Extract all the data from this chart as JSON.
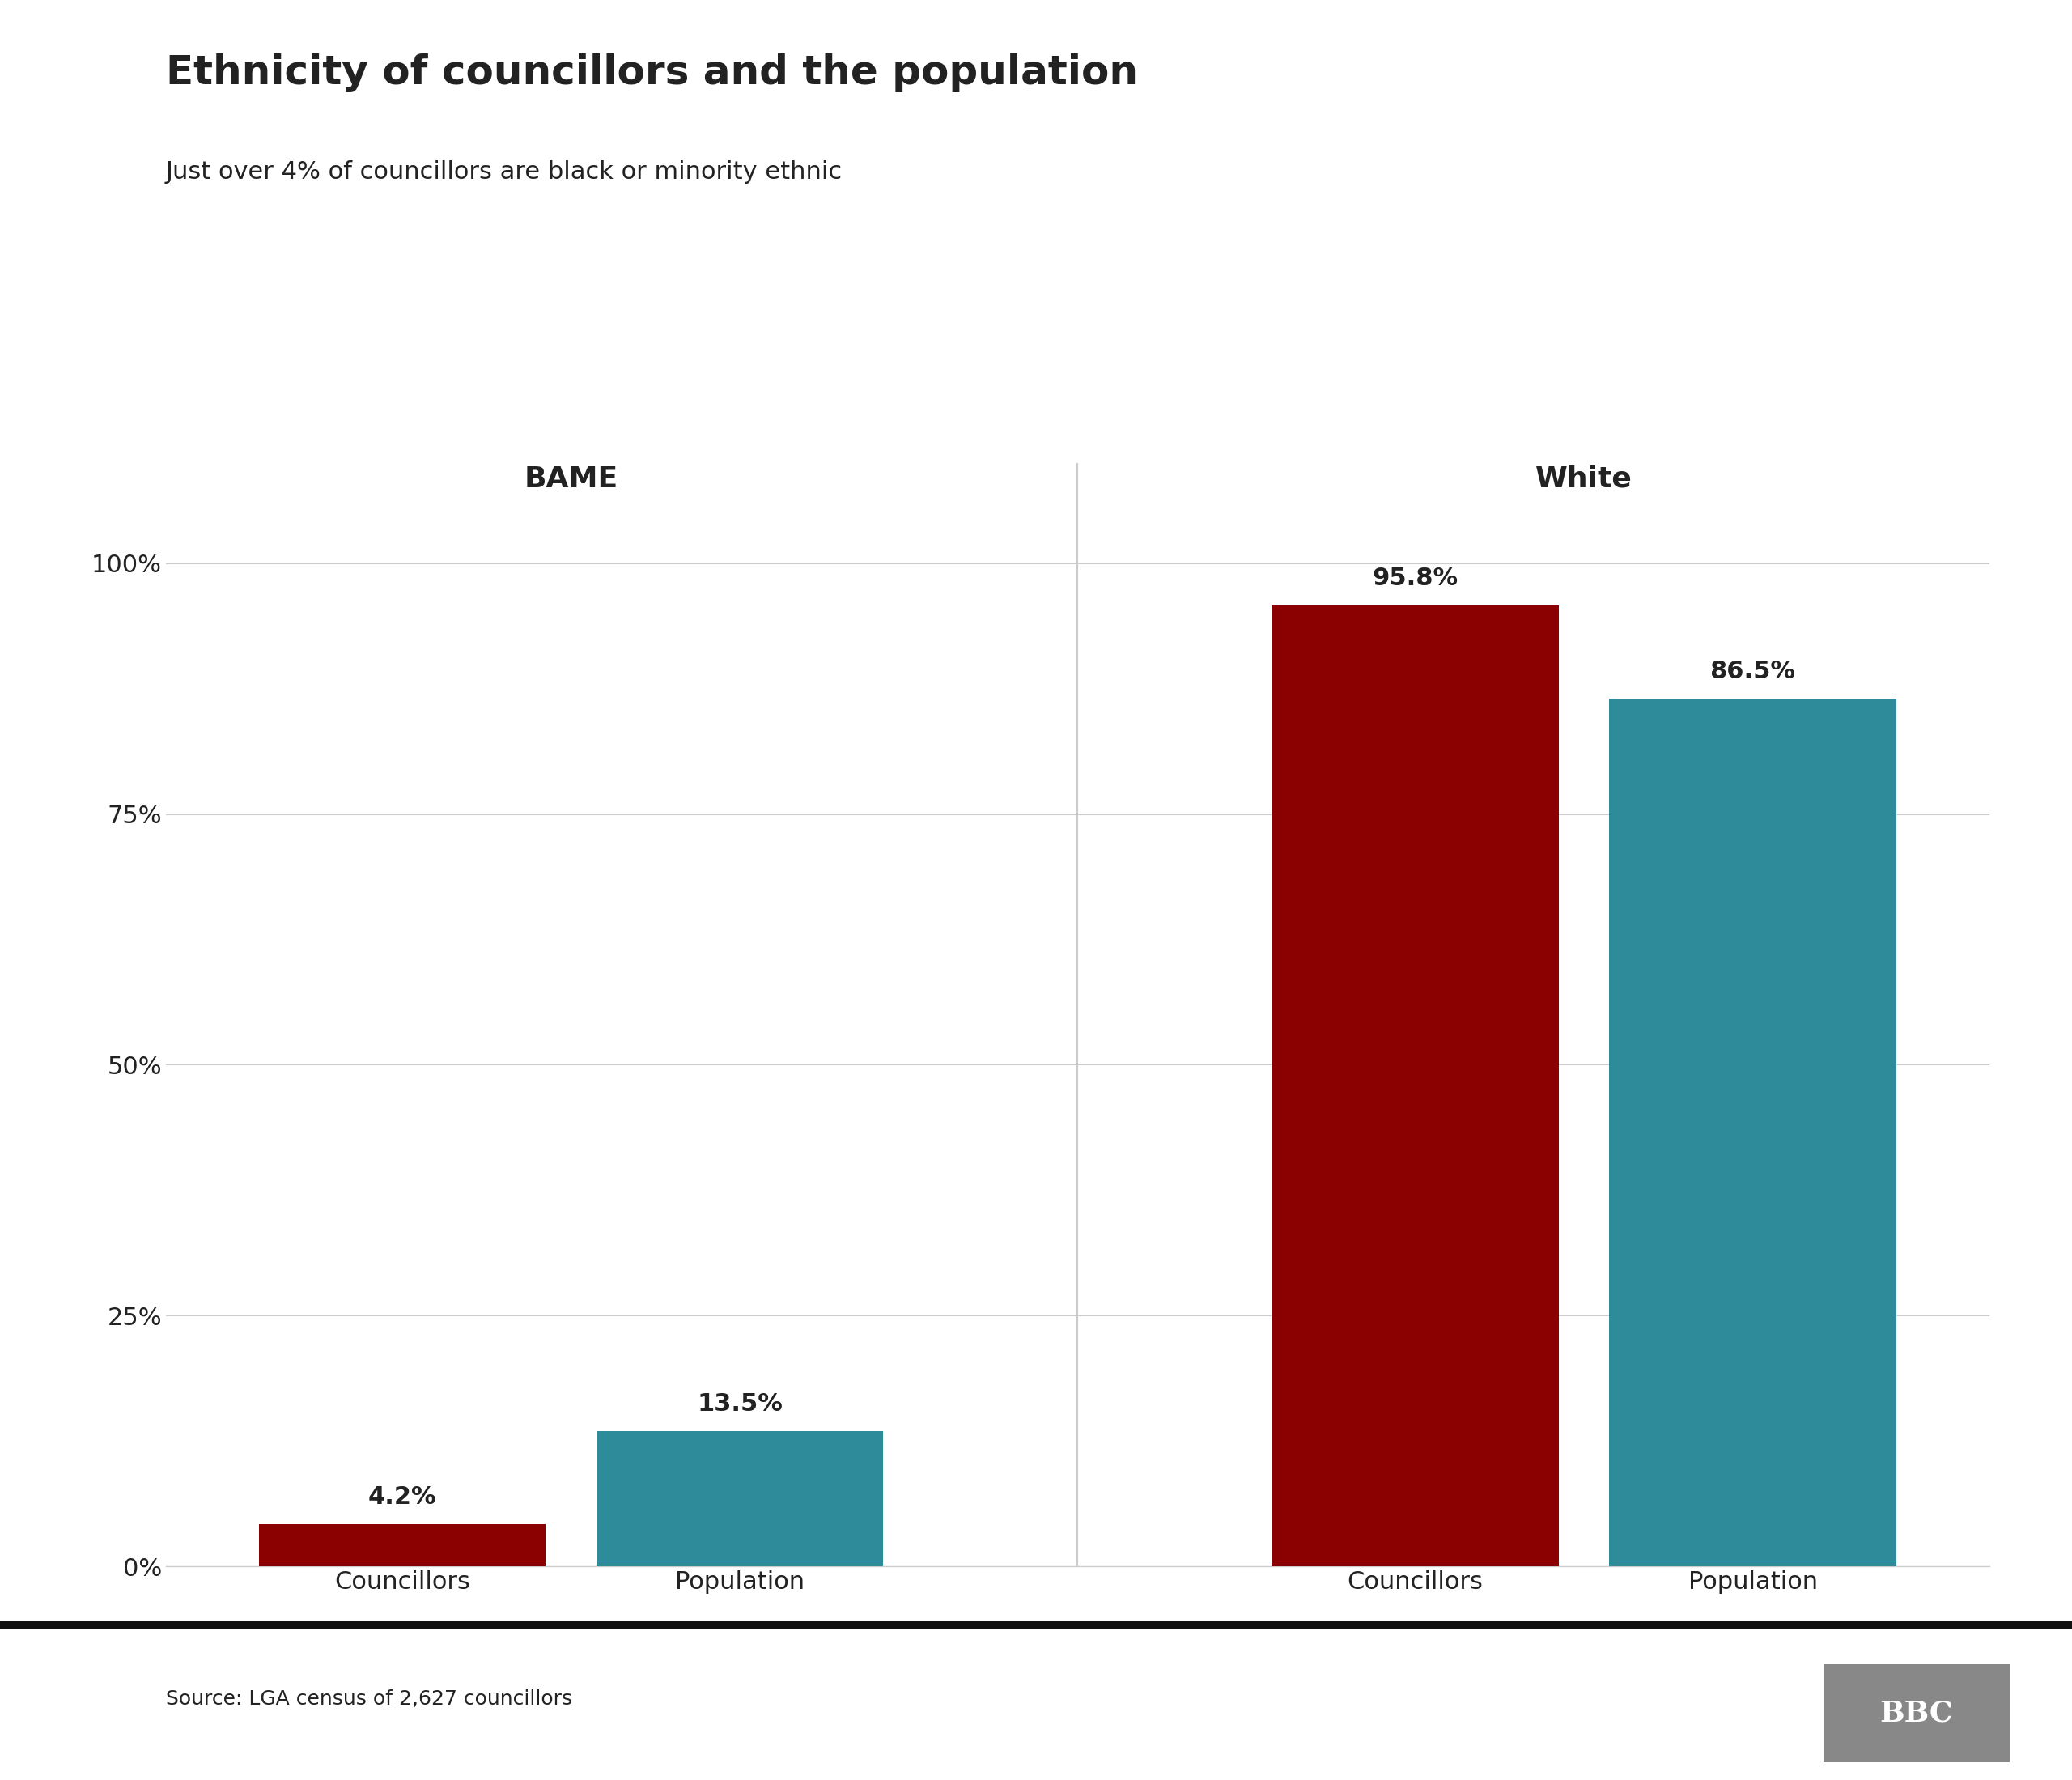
{
  "title": "Ethnicity of councillors and the population",
  "subtitle": "Just over 4% of councillors are black or minority ethnic",
  "group_labels": [
    "BAME",
    "White"
  ],
  "bar_labels": [
    "Councillors",
    "Population"
  ],
  "values": {
    "bame_councillors": 4.2,
    "bame_population": 13.5,
    "white_councillors": 95.8,
    "white_population": 86.5
  },
  "bar_colors": {
    "councillors": "#8B0000",
    "population": "#2E8B9A"
  },
  "label_values": {
    "bame_councillors": "4.2%",
    "bame_population": "13.5%",
    "white_councillors": "95.8%",
    "white_population": "86.5%"
  },
  "source_text": "Source: LGA census of 2,627 councillors",
  "bbc_logo_text": "BBC",
  "yticks": [
    0,
    25,
    50,
    75,
    100
  ],
  "ytick_labels": [
    "0%",
    "25%",
    "50%",
    "75%",
    "100%"
  ],
  "background_color": "#ffffff",
  "text_color": "#222222",
  "title_fontsize": 36,
  "subtitle_fontsize": 22,
  "group_label_fontsize": 26,
  "bar_label_fontsize": 22,
  "value_label_fontsize": 22,
  "ytick_fontsize": 22,
  "source_fontsize": 18
}
